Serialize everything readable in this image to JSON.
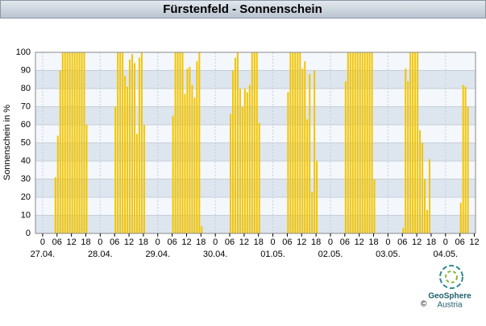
{
  "chart_data": {
    "type": "bar",
    "title": "Fürstenfeld - Sonnenschein",
    "y_label": "Sonnenschein in %",
    "color": "#f2c500",
    "grid": true,
    "ylim": [
      0,
      100
    ],
    "yticks": [
      0,
      10,
      20,
      30,
      40,
      50,
      60,
      70,
      80,
      90,
      100
    ],
    "xlim": [
      -3,
      180.5
    ],
    "xticks": [
      0,
      {
        "value": 6,
        "label": "06"
      },
      {
        "value": 12,
        "label": "12"
      },
      {
        "value": 18,
        "label": "18"
      },
      {
        "value": 24,
        "label": "0"
      },
      {
        "value": 30,
        "label": "06"
      },
      {
        "value": 36,
        "label": "12"
      },
      {
        "value": 42,
        "label": "18"
      },
      {
        "value": 48,
        "label": "0"
      },
      {
        "value": 54,
        "label": "06"
      },
      {
        "value": 60,
        "label": "12"
      },
      {
        "value": 66,
        "label": "18"
      },
      {
        "value": 72,
        "label": "0"
      },
      {
        "value": 78,
        "label": "06"
      },
      {
        "value": 84,
        "label": "12"
      },
      {
        "value": 90,
        "label": "18"
      },
      {
        "value": 96,
        "label": "0"
      },
      {
        "value": 102,
        "label": "06"
      },
      {
        "value": 108,
        "label": "12"
      },
      {
        "value": 114,
        "label": "18"
      },
      {
        "value": 120,
        "label": "0"
      },
      {
        "value": 126,
        "label": "06"
      },
      {
        "value": 132,
        "label": "12"
      },
      {
        "value": 138,
        "label": "18"
      },
      {
        "value": 144,
        "label": "0"
      },
      {
        "value": 150,
        "label": "06"
      },
      {
        "value": 156,
        "label": "12"
      },
      {
        "value": 162,
        "label": "18"
      },
      {
        "value": 168,
        "label": "0"
      },
      {
        "value": 174,
        "label": "06"
      },
      {
        "value": 180,
        "label": "12"
      }
    ],
    "xdates": [
      {
        "value": 0,
        "label": "27.04."
      },
      {
        "value": 24,
        "label": "28.04."
      },
      {
        "value": 48,
        "label": "29.04."
      },
      {
        "value": 72,
        "label": "30.04."
      },
      {
        "value": 96,
        "label": "01.05."
      },
      {
        "value": 120,
        "label": "02.05."
      },
      {
        "value": 144,
        "label": "03.05."
      },
      {
        "value": 168,
        "label": "04.05."
      }
    ],
    "x": [
      5,
      6,
      7,
      8,
      9,
      10,
      11,
      12,
      13,
      14,
      15,
      16,
      17,
      18,
      30,
      31,
      32,
      33,
      34,
      35,
      36,
      37,
      38,
      39,
      40,
      41,
      42,
      54,
      55,
      56,
      57,
      58,
      59,
      60,
      61,
      62,
      63,
      64,
      65,
      66,
      78,
      79,
      80,
      81,
      82,
      83,
      84,
      85,
      86,
      87,
      88,
      89,
      90,
      102,
      103,
      104,
      105,
      106,
      107,
      108,
      109,
      110,
      111,
      112,
      113,
      114,
      126,
      127,
      128,
      129,
      130,
      131,
      132,
      133,
      134,
      135,
      136,
      137,
      138,
      150,
      151,
      152,
      153,
      154,
      155,
      156,
      157,
      158,
      159,
      160,
      161,
      174,
      175,
      176,
      177
    ],
    "values": [
      31,
      54,
      90,
      100,
      100,
      100,
      100,
      100,
      100,
      100,
      100,
      100,
      100,
      60,
      70,
      100,
      100,
      100,
      87,
      81,
      96,
      99,
      94,
      55,
      97,
      100,
      60,
      65,
      100,
      100,
      100,
      100,
      77,
      91,
      92,
      82,
      75,
      95,
      100,
      4,
      66,
      90,
      97,
      100,
      80,
      70,
      80,
      78,
      82,
      100,
      100,
      100,
      61,
      78,
      100,
      100,
      100,
      100,
      100,
      91,
      95,
      63,
      88,
      23,
      90,
      40,
      84,
      100,
      100,
      100,
      100,
      100,
      100,
      100,
      100,
      100,
      100,
      100,
      30,
      3,
      91,
      84,
      100,
      100,
      100,
      100,
      57,
      50,
      30,
      13,
      41,
      17,
      82,
      81,
      70
    ]
  },
  "logo": {
    "copyright": "©",
    "name": "GeoSphere",
    "subname": "Austria"
  }
}
